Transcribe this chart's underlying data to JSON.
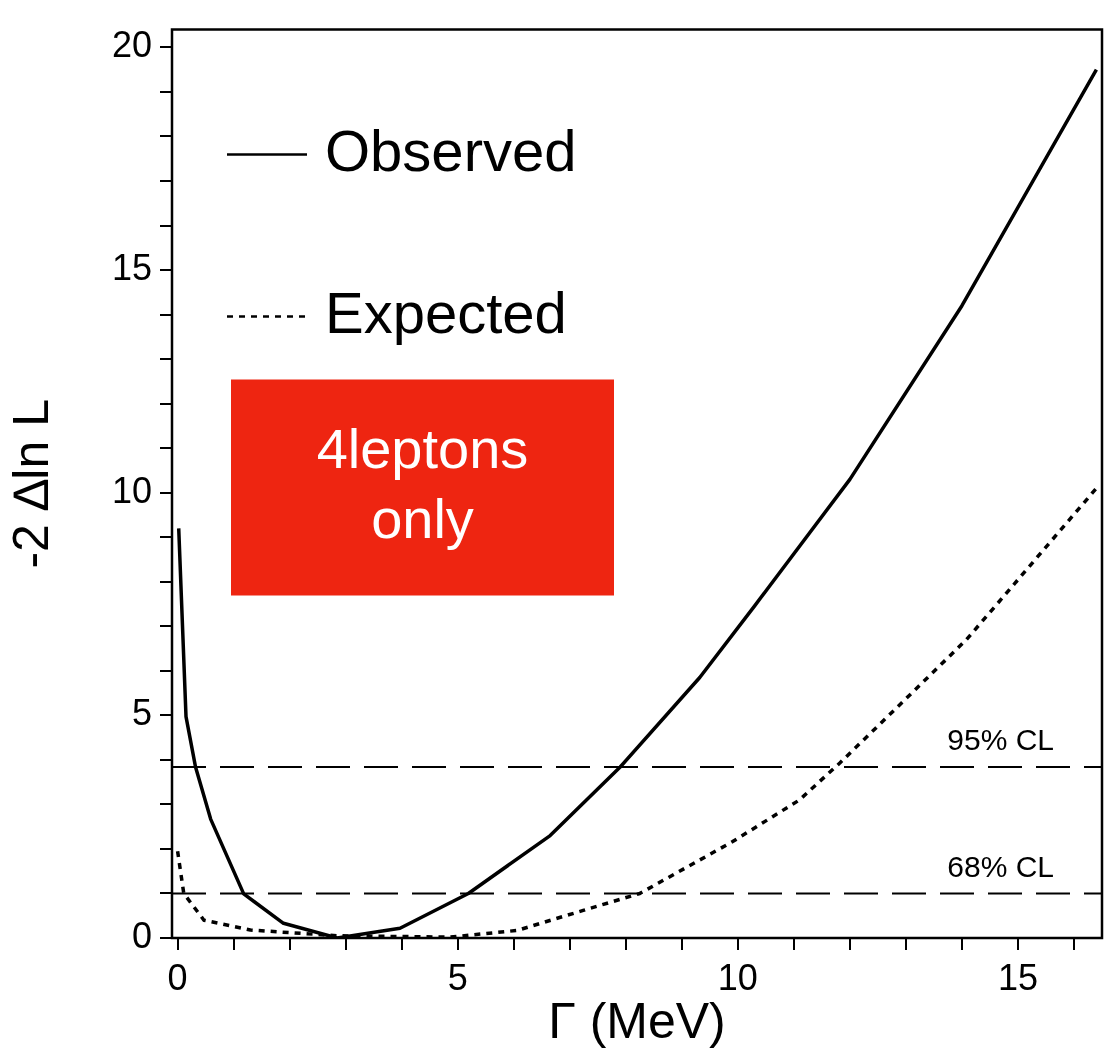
{
  "chart_data": {
    "type": "line",
    "xlabel": "Γ (MeV)",
    "ylabel": "-2 ∆ln L",
    "xlim": [
      -0.1,
      16.5
    ],
    "ylim": [
      0,
      20.4
    ],
    "xticks": [
      {
        "value": 0,
        "label": "0"
      },
      {
        "value": 1,
        "label": null
      },
      {
        "value": 2,
        "label": null
      },
      {
        "value": 3,
        "label": null
      },
      {
        "value": 4,
        "label": null
      },
      {
        "value": 5,
        "label": "5"
      },
      {
        "value": 6,
        "label": null
      },
      {
        "value": 7,
        "label": null
      },
      {
        "value": 8,
        "label": null
      },
      {
        "value": 9,
        "label": null
      },
      {
        "value": 10,
        "label": "10"
      },
      {
        "value": 11,
        "label": null
      },
      {
        "value": 12,
        "label": null
      },
      {
        "value": 13,
        "label": null
      },
      {
        "value": 14,
        "label": null
      },
      {
        "value": 15,
        "label": "15"
      },
      {
        "value": 16,
        "label": null
      }
    ],
    "yticks": [
      {
        "value": 0,
        "label": "0"
      },
      {
        "value": 1,
        "label": null
      },
      {
        "value": 2,
        "label": null
      },
      {
        "value": 3,
        "label": null
      },
      {
        "value": 4,
        "label": null
      },
      {
        "value": 5,
        "label": "5"
      },
      {
        "value": 6,
        "label": null
      },
      {
        "value": 7,
        "label": null
      },
      {
        "value": 8,
        "label": null
      },
      {
        "value": 9,
        "label": null
      },
      {
        "value": 10,
        "label": "10"
      },
      {
        "value": 11,
        "label": null
      },
      {
        "value": 12,
        "label": null
      },
      {
        "value": 13,
        "label": null
      },
      {
        "value": 14,
        "label": null
      },
      {
        "value": 15,
        "label": "15"
      },
      {
        "value": 16,
        "label": null
      },
      {
        "value": 17,
        "label": null
      },
      {
        "value": 18,
        "label": null
      },
      {
        "value": 19,
        "label": null
      },
      {
        "value": 20,
        "label": "20"
      }
    ],
    "grid": false,
    "legend": "top left",
    "marker": "none",
    "series": [
      {
        "name": "Observed",
        "color": "#000000",
        "line_style": "solid",
        "x": [
          0.02,
          0.15,
          0.32,
          0.59,
          1.18,
          1.89,
          2.85,
          3.97,
          5.19,
          6.65,
          7.9,
          9.32,
          10.3,
          12,
          14,
          16.4
        ],
        "values": [
          9.2,
          4.97,
          3.84,
          2.67,
          0.99,
          0.33,
          0,
          0.22,
          1.0,
          2.3,
          3.84,
          5.85,
          7.46,
          10.3,
          14.2,
          19.5
        ]
      },
      {
        "name": "Expected",
        "color": "#000000",
        "line_style": "dotted",
        "x": [
          0,
          0.11,
          0.47,
          1.3,
          2.85,
          4.87,
          6.06,
          7.24,
          8.25,
          9.9,
          11.1,
          11.82,
          12.9,
          14.08,
          14.6,
          16.4
        ],
        "values": [
          1.95,
          1.0,
          0.4,
          0.18,
          0.05,
          0.02,
          0.17,
          0.62,
          1.0,
          2.16,
          3.1,
          3.93,
          5.25,
          6.7,
          7.46,
          10.1
        ]
      }
    ],
    "ref_lines": [
      {
        "axis": "y",
        "value": 3.84,
        "label": "95% CL",
        "color": "#000000",
        "line_style": "dashed"
      },
      {
        "axis": "y",
        "value": 1.0,
        "label": "68% CL",
        "color": "#000000",
        "line_style": "dashed"
      }
    ],
    "annotations": [
      "4leptons only"
    ]
  }
}
